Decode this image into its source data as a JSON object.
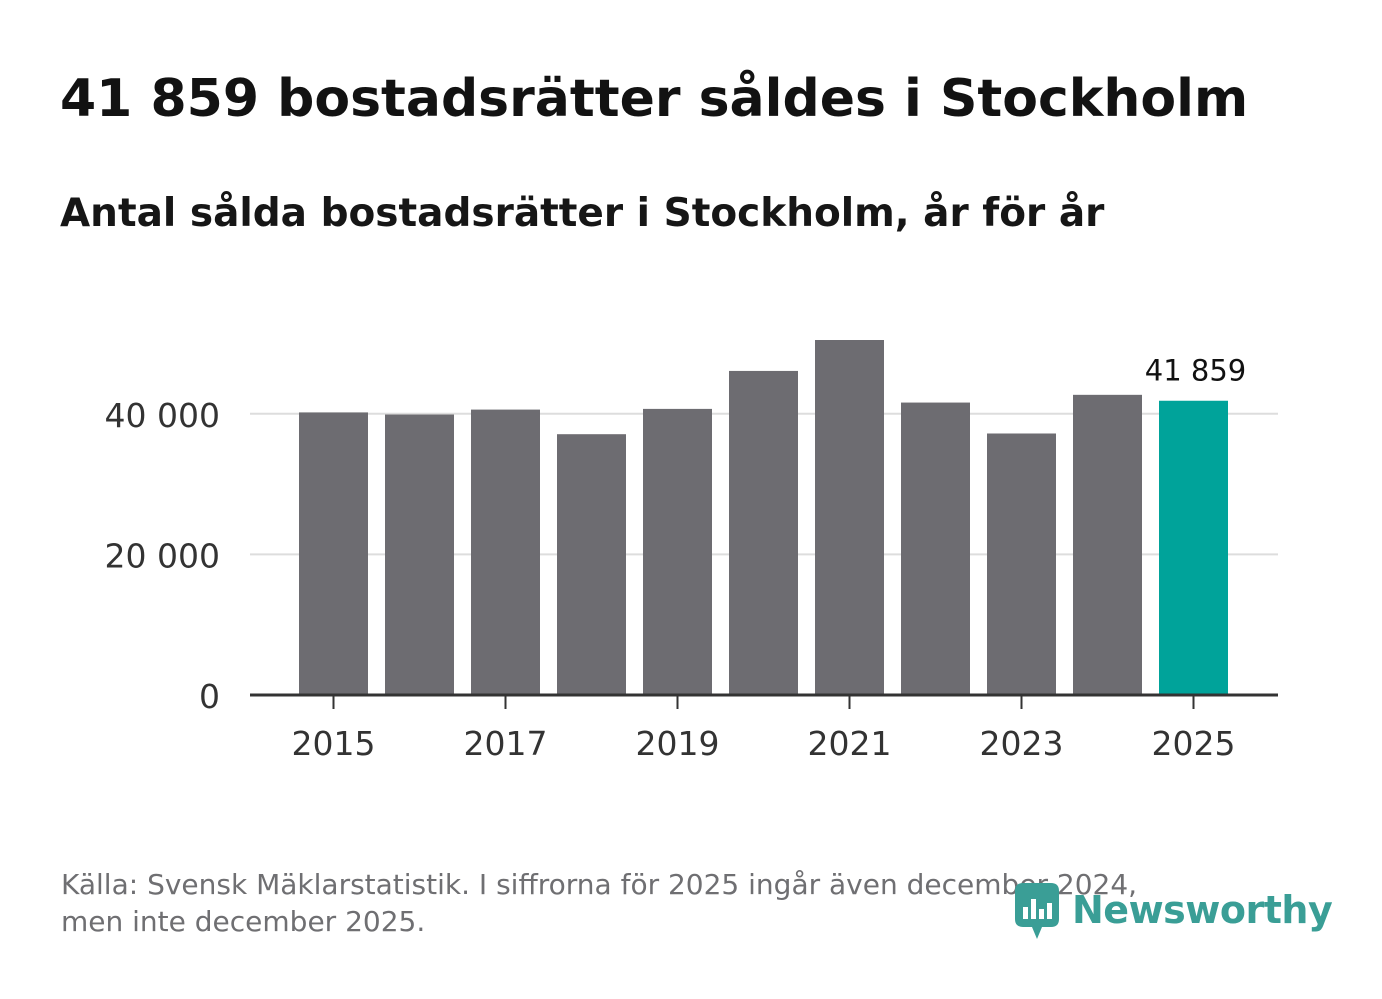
{
  "title": "41 859 bostadsrätter såldes i Stockholm",
  "subtitle": "Antal sålda bostadsrätter i Stockholm, år för år",
  "source_lines": [
    "Källa: Svensk Mäklarstatistik. I siffrorna för 2025 ingår även december 2024,",
    "men inte december 2025."
  ],
  "logo": {
    "text": "Newsworthy",
    "icon": "bar-chart-speech-bubble-icon"
  },
  "colors": {
    "bar": "#6d6c71",
    "highlight": "#00a39a",
    "grid": "#dddddd",
    "axis": "#333333",
    "logo": "#3a9e96"
  },
  "chart_data": {
    "type": "bar",
    "categories": [
      "2015",
      "2016",
      "2017",
      "2018",
      "2019",
      "2020",
      "2021",
      "2022",
      "2023",
      "2024",
      "2025"
    ],
    "values": [
      40200,
      39900,
      40600,
      37100,
      40700,
      46100,
      50500,
      41600,
      37200,
      42700,
      41859
    ],
    "highlight_index": 10,
    "highlight_label": "41 859",
    "x_tick_labels": [
      "2015",
      "2017",
      "2019",
      "2021",
      "2023",
      "2025"
    ],
    "y_ticks": [
      0,
      20000,
      40000
    ],
    "y_tick_labels": [
      "0",
      "20 000",
      "40 000"
    ],
    "ylim": [
      0,
      50500
    ],
    "grid": true,
    "title": "Antal sålda bostadsrätter i Stockholm, år för år",
    "xlabel": "",
    "ylabel": ""
  }
}
